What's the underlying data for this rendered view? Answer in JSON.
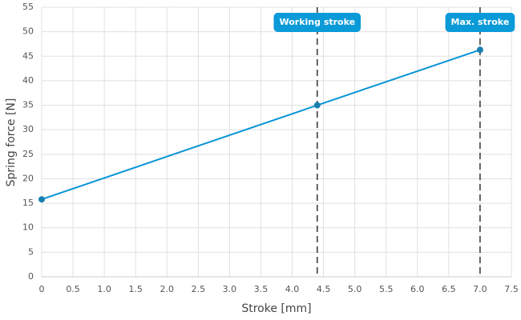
{
  "chart_data": {
    "type": "line",
    "x_label": "Stroke [mm]",
    "y_label": "Spring force [N]",
    "series": [
      {
        "name": "Spring force",
        "color": "#0a94d6",
        "x": [
          0,
          4.4,
          7.0
        ],
        "values": [
          15.8,
          35,
          46.3
        ]
      }
    ],
    "xlim": [
      0,
      7.5
    ],
    "xticks": [
      0,
      0.5,
      {
        "value": 1,
        "label": "1.0"
      },
      1.5,
      {
        "value": 2,
        "label": "2.0"
      },
      2.5,
      {
        "value": 3,
        "label": "3.0"
      },
      3.5,
      {
        "value": 4,
        "label": "4.0"
      },
      4.5,
      {
        "value": 5,
        "label": "5.0"
      },
      5.5,
      {
        "value": 6,
        "label": "6.0"
      },
      6.5,
      {
        "value": 7,
        "label": "7.0"
      },
      7.5
    ],
    "ylim": [
      0,
      55
    ],
    "yticks": [
      0,
      5,
      10,
      15,
      20,
      25,
      30,
      35,
      40,
      45,
      50,
      55
    ],
    "grid": true,
    "annotations": [
      {
        "x": 4.4,
        "label": "Working stroke"
      },
      {
        "x": 7.0,
        "label": "Max. stroke"
      }
    ],
    "annotation_color": "#0a9ad8"
  }
}
